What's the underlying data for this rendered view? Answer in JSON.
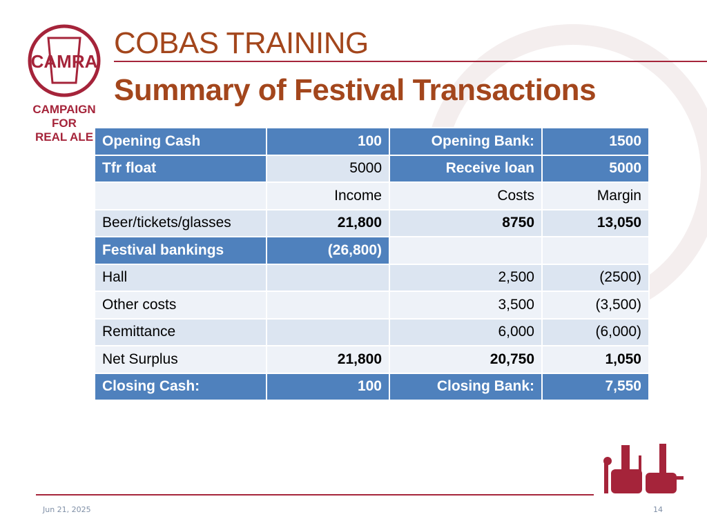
{
  "header": {
    "title": "COBAS TRAINING",
    "subtitle": "Summary of Festival Transactions"
  },
  "logo": {
    "mark": "CAMRA",
    "lines": [
      "CAMPAIGN",
      "FOR",
      "REAL ALE"
    ]
  },
  "table": {
    "rows": [
      [
        "Opening Cash",
        "100",
        "Opening Bank:",
        "1500"
      ],
      [
        "Tfr float",
        "5000",
        "Receive loan",
        "5000"
      ],
      [
        null,
        "Income",
        "Costs",
        "Margin"
      ],
      [
        "Beer/tickets/glasses",
        "21,800",
        "8750",
        "13,050"
      ],
      [
        "Festival bankings",
        "(26,800)",
        null,
        null
      ],
      [
        "Hall",
        null,
        "2,500",
        "(2500)"
      ],
      [
        "Other costs",
        null,
        "3,500",
        "(3,500)"
      ],
      [
        "Remittance",
        null,
        "6,000",
        "(6,000)"
      ],
      [
        "Net Surplus",
        "21,800",
        "20,750",
        "1,050"
      ],
      [
        "Closing Cash:",
        "100",
        "Closing Bank:",
        "7,550"
      ]
    ]
  },
  "footer": {
    "date": "Jun 21, 2025",
    "page": "14"
  }
}
